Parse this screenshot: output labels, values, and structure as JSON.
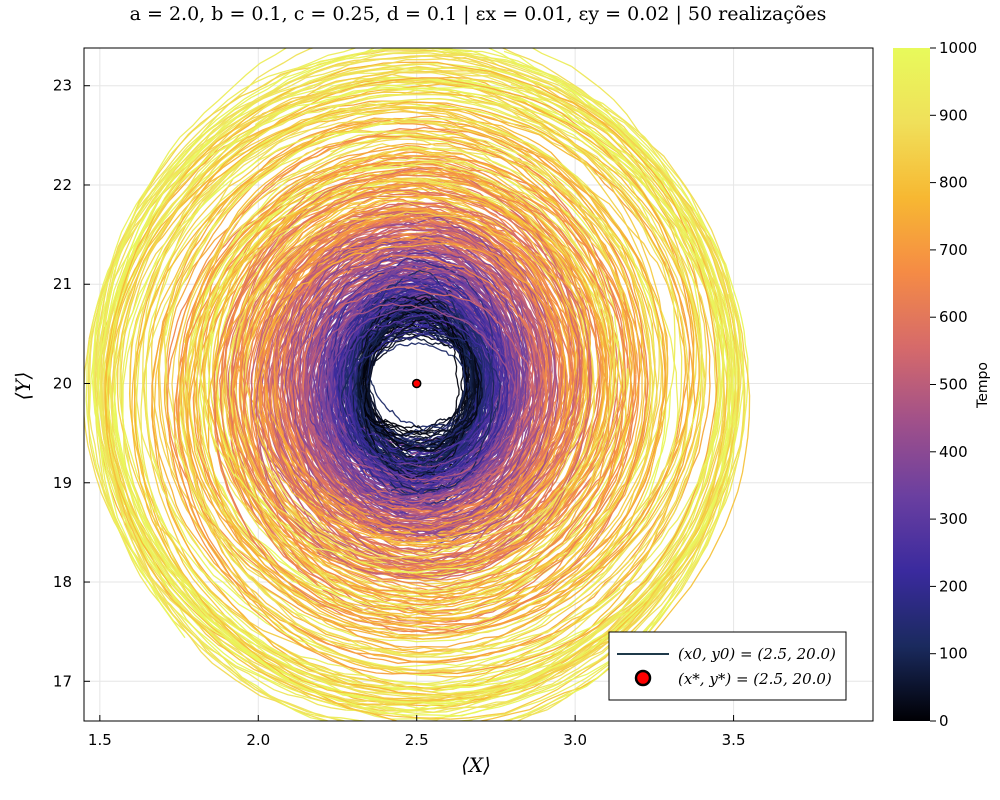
{
  "chart_data": {
    "type": "line",
    "title": "a = 2.0,  b = 0.1,  c = 0.25,  d = 0.1 | εx = 0.01,  εy = 0.02 | 50 realizações",
    "xlabel": "⟨X⟩",
    "ylabel": "⟨Y⟩",
    "xlim": [
      1.45,
      3.94
    ],
    "ylim": [
      16.6,
      23.38
    ],
    "x_ticks": [
      1.5,
      2.0,
      2.5,
      3.0,
      3.5
    ],
    "x_tick_labels": [
      "1.5",
      "2.0",
      "2.5",
      "3.0",
      "3.5"
    ],
    "y_ticks": [
      17,
      18,
      19,
      20,
      21,
      22,
      23
    ],
    "y_tick_labels": [
      "17",
      "18",
      "19",
      "20",
      "21",
      "22",
      "23"
    ],
    "grid": true,
    "legend_position": "bottom-right",
    "colorbar": {
      "label": "Tempo",
      "range": [
        0,
        1000
      ],
      "ticks": [
        0,
        100,
        200,
        300,
        400,
        500,
        600,
        700,
        800,
        900,
        1000
      ],
      "tick_labels": [
        "0",
        "100",
        "200",
        "300",
        "400",
        "500",
        "600",
        "700",
        "800",
        "900",
        "1000"
      ],
      "colormap": [
        "#000004",
        "#1a2a5e",
        "#3a2a9e",
        "#6a3fa0",
        "#a0508a",
        "#d66a6a",
        "#f58b45",
        "#f7b832",
        "#f0e05a",
        "#e8fa5b"
      ]
    },
    "center": {
      "x": 2.5,
      "y": 20.0
    },
    "series": [
      {
        "name": "(x0, y0) = (2.5, 20.0)",
        "kind": "line",
        "color": "#1f3a4a"
      },
      {
        "name": "(x*, y*) = (2.5, 20.0)",
        "kind": "point",
        "x": 2.5,
        "y": 20.0,
        "color": "#ff0000"
      }
    ],
    "realizations": 50,
    "time_max": 1000
  }
}
